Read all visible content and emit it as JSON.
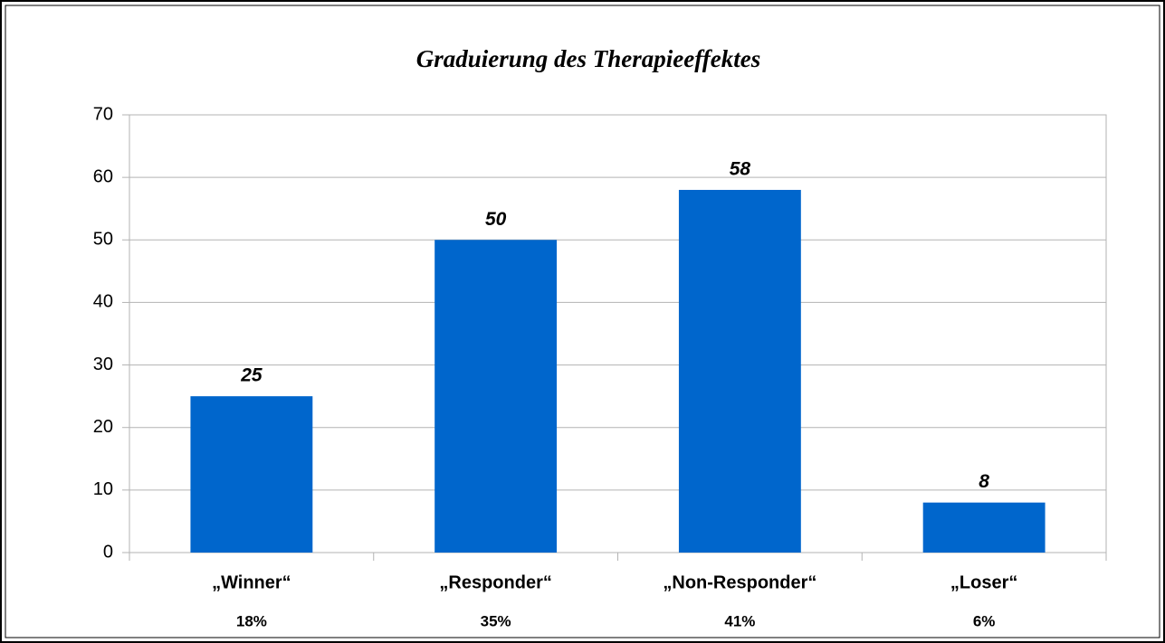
{
  "chart_data": {
    "type": "bar",
    "title": "Graduierung des Therapieeffektes",
    "categories": [
      "„Winner“",
      "„Responder“",
      "„Non-Responder“",
      "„Loser“"
    ],
    "shares": [
      "18%",
      "35%",
      "41%",
      "6%"
    ],
    "values": [
      25,
      50,
      58,
      8
    ],
    "color": "#0066cc",
    "ylim": [
      0,
      70
    ],
    "yticks": [
      0,
      10,
      20,
      30,
      40,
      50,
      60,
      70
    ],
    "grid": true
  }
}
